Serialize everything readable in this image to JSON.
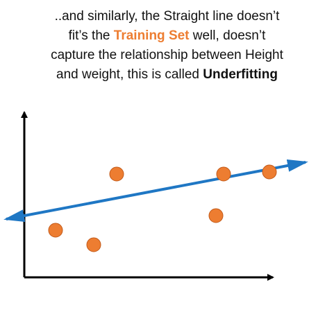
{
  "caption": {
    "line1": "..and similarly, the Straight line doesn’t",
    "line2_pre": "fit’s the ",
    "line2_highlight": "Training Set",
    "line2_post": " well, doesn’t",
    "line3": "capture the relationship between Height",
    "line4_pre": "and weight, this is called ",
    "line4_bold": "Underfitting"
  },
  "colors": {
    "text": "#111111",
    "highlight": "#ed7d31",
    "points": "#ed7d31",
    "fit_line": "#1f77c4",
    "axes": "#000000"
  },
  "chart_data": {
    "type": "scatter",
    "points": [
      {
        "x": 1.0,
        "y": 2.8
      },
      {
        "x": 2.0,
        "y": 2.1
      },
      {
        "x": 2.6,
        "y": 5.5
      },
      {
        "x": 5.2,
        "y": 3.5
      },
      {
        "x": 5.4,
        "y": 5.5
      },
      {
        "x": 6.6,
        "y": 5.6
      }
    ],
    "fit_line": {
      "x": [
        0,
        7.6
      ],
      "y": [
        3.0,
        5.4
      ],
      "style": "double-arrow"
    },
    "xlim": [
      0,
      7.6
    ],
    "ylim": [
      0,
      8.2
    ],
    "axis_tick_labels": false,
    "grid": false
  }
}
